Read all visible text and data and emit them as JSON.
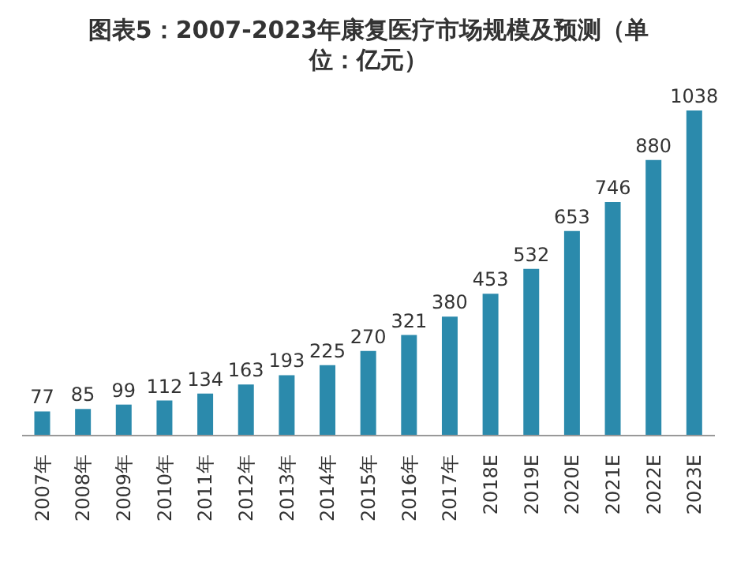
{
  "chart_data": {
    "type": "bar",
    "title": "图表5：2007-2023年康复医疗市场规模及预测（单位：亿元）",
    "categories": [
      "2007年",
      "2008年",
      "2009年",
      "2010年",
      "2011年",
      "2012年",
      "2013年",
      "2014年",
      "2015年",
      "2016年",
      "2017年",
      "2018E",
      "2019E",
      "2020E",
      "2021E",
      "2022E",
      "2023E"
    ],
    "values": [
      77,
      85,
      99,
      112,
      134,
      163,
      193,
      225,
      270,
      321,
      380,
      453,
      532,
      653,
      746,
      880,
      1038
    ],
    "color": "#2b8aac",
    "data_labels": true
  }
}
